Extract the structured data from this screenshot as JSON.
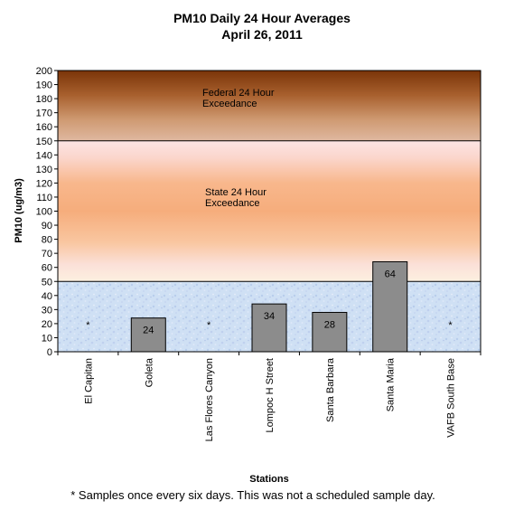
{
  "chart_data": {
    "type": "bar",
    "title": "PM10 Daily 24 Hour Averages",
    "subtitle": "April 26, 2011",
    "xlabel": "Stations",
    "ylabel": "PM10 (ug/m3)",
    "ylim": [
      0,
      200
    ],
    "ytick_step": 10,
    "categories": [
      "El Capitan",
      "Goleta",
      "Las Flores Canyon",
      "Lompoc H Street",
      "Santa Barbara",
      "Santa Maria",
      "VAFB South Base"
    ],
    "values": [
      null,
      24,
      null,
      34,
      28,
      64,
      null
    ],
    "value_labels": [
      "*",
      "24",
      "*",
      "34",
      "28",
      "64",
      "*"
    ],
    "bar_color": "#8c8c8c",
    "thresholds": [
      {
        "value": 50,
        "label": "State 24 Hour Exceedance",
        "label_lines": [
          "State 24 Hour",
          "Exceedance"
        ]
      },
      {
        "value": 150,
        "label": "Federal 24 Hour Exceedance",
        "label_lines": [
          "Federal 24 Hour",
          "Exceedance"
        ]
      }
    ],
    "footnote": "*  Samples once every six days.  This was not a scheduled sample day."
  }
}
